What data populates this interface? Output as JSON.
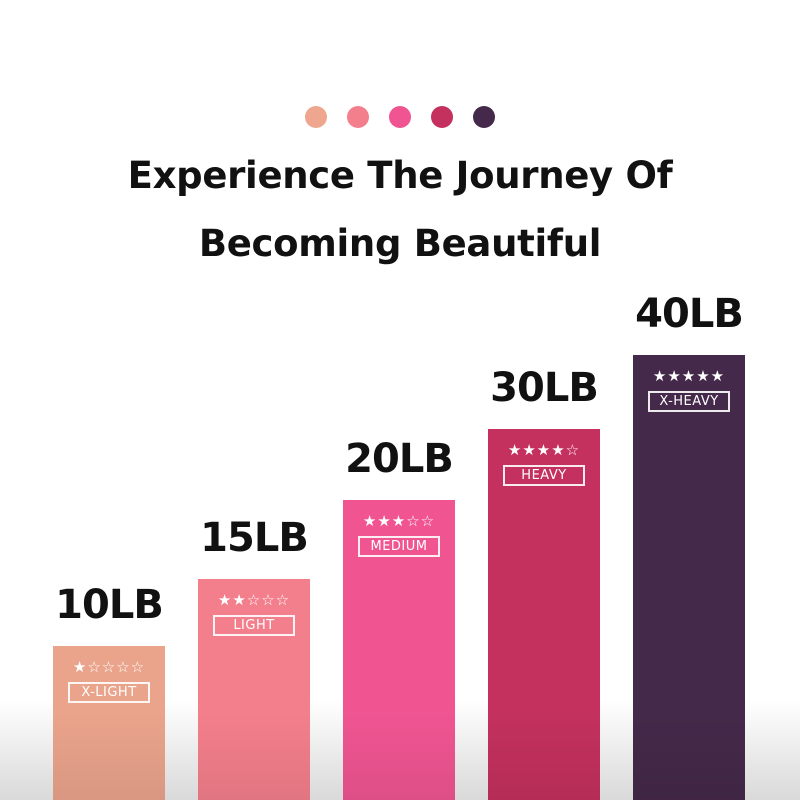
{
  "dots": [
    "#EFA68F",
    "#F47F8C",
    "#F05592",
    "#C4315E",
    "#45294A"
  ],
  "title": {
    "line1": "Experience The Journey Of",
    "line2": "Becoming Beautiful"
  },
  "bands": [
    {
      "weight": "10LB",
      "level": "X-LIGHT",
      "rating": 1,
      "stars": "★☆☆☆☆",
      "color": "#EBA48C"
    },
    {
      "weight": "15LB",
      "level": "LIGHT",
      "rating": 2,
      "stars": "★★☆☆☆",
      "color": "#F47F8C"
    },
    {
      "weight": "20LB",
      "level": "MEDIUM",
      "rating": 3,
      "stars": "★★★☆☆",
      "color": "#F05592"
    },
    {
      "weight": "30LB",
      "level": "HEAVY",
      "rating": 4,
      "stars": "★★★★☆",
      "color": "#C4315E"
    },
    {
      "weight": "40LB",
      "level": "X-HEAVY",
      "rating": 5,
      "stars": "★★★★★",
      "color": "#45294A"
    }
  ]
}
